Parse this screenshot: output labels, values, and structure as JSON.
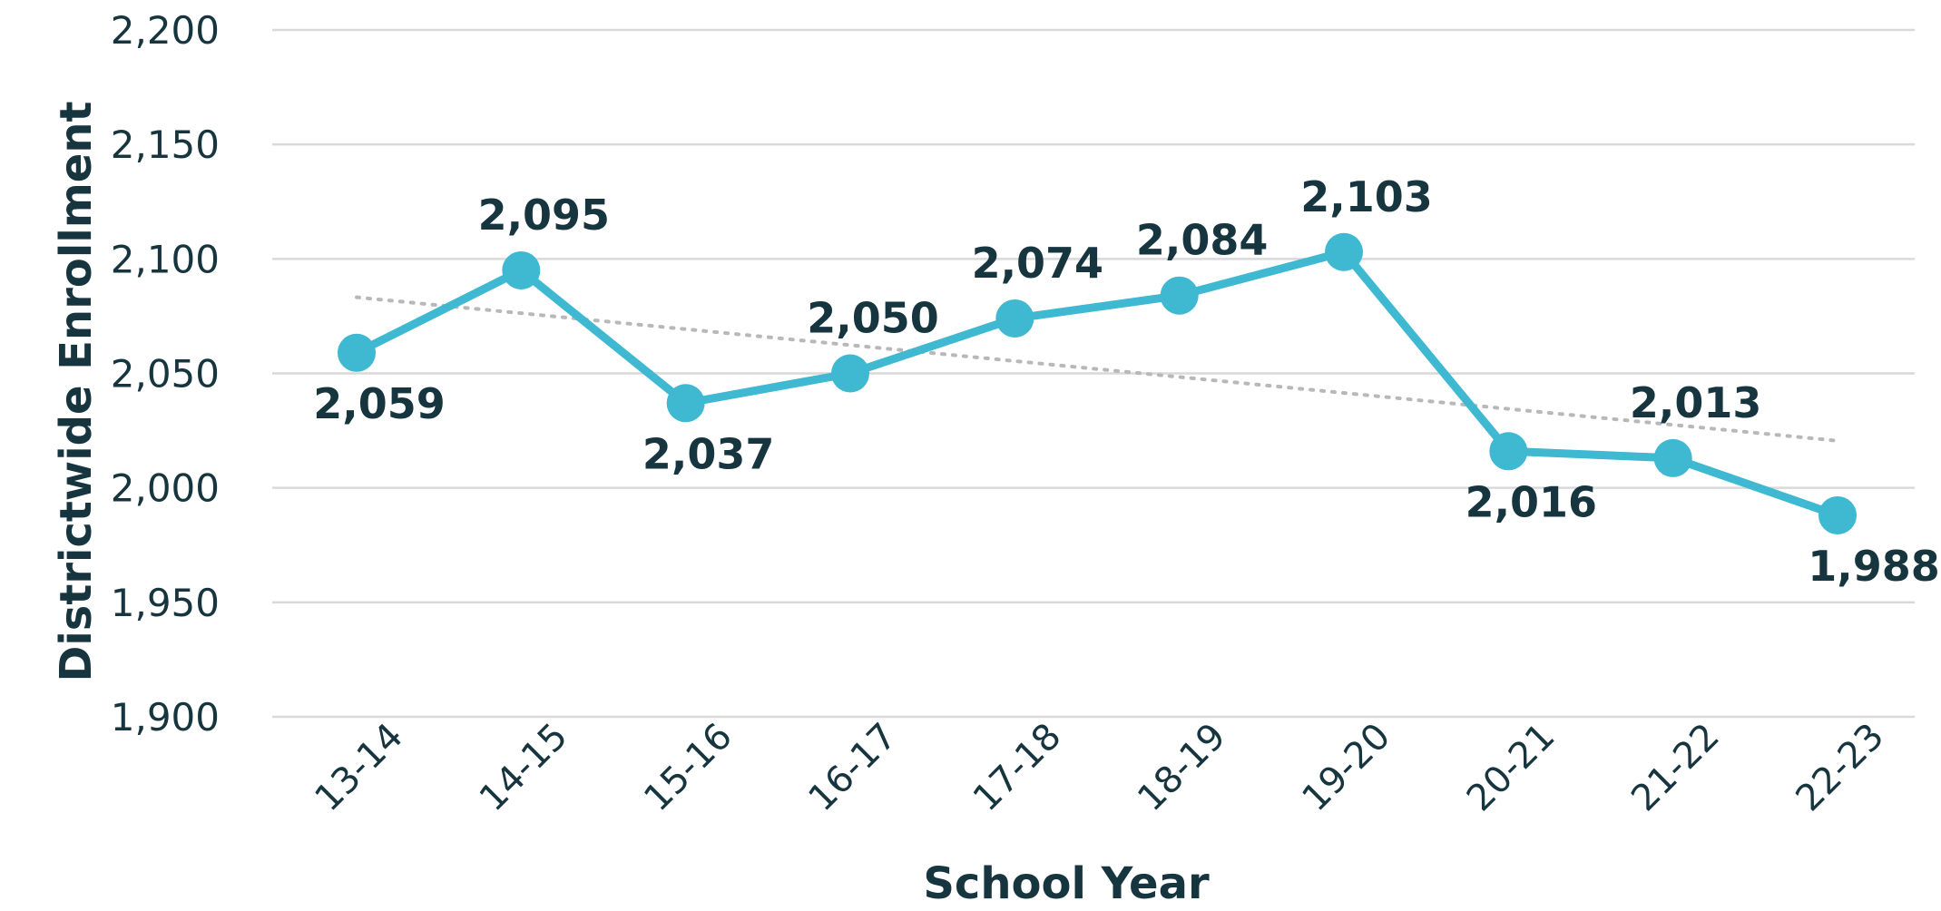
{
  "chart_data": {
    "type": "line",
    "title": "",
    "xlabel": "School Year",
    "ylabel": "Districtwide Enrollment",
    "categories": [
      "13-14",
      "14-15",
      "15-16",
      "16-17",
      "17-18",
      "18-19",
      "19-20",
      "20-21",
      "21-22",
      "22-23"
    ],
    "series": [
      {
        "values": [
          2059,
          2095,
          2037,
          2050,
          2074,
          2084,
          2103,
          2016,
          2013,
          1988
        ],
        "labels": [
          "2,059",
          "2,095",
          "2,037",
          "2,050",
          "2,074",
          "2,084",
          "2,103",
          "2,016",
          "2,013",
          "1,988"
        ],
        "label_positions": [
          "below",
          "above",
          "below",
          "above",
          "above",
          "above",
          "above",
          "below",
          "above",
          "below"
        ],
        "color": "#3fb8d1"
      }
    ],
    "trendline": {
      "type": "linear",
      "color": "#b8b8b8",
      "style": "dotted"
    },
    "ylim": [
      1900,
      2200
    ],
    "yticks": [
      "1,900",
      "1,950",
      "2,000",
      "2,050",
      "2,100",
      "2,150",
      "2,200"
    ],
    "grid": true,
    "text_color": "#16353f",
    "grid_color": "#d9d9d9"
  }
}
